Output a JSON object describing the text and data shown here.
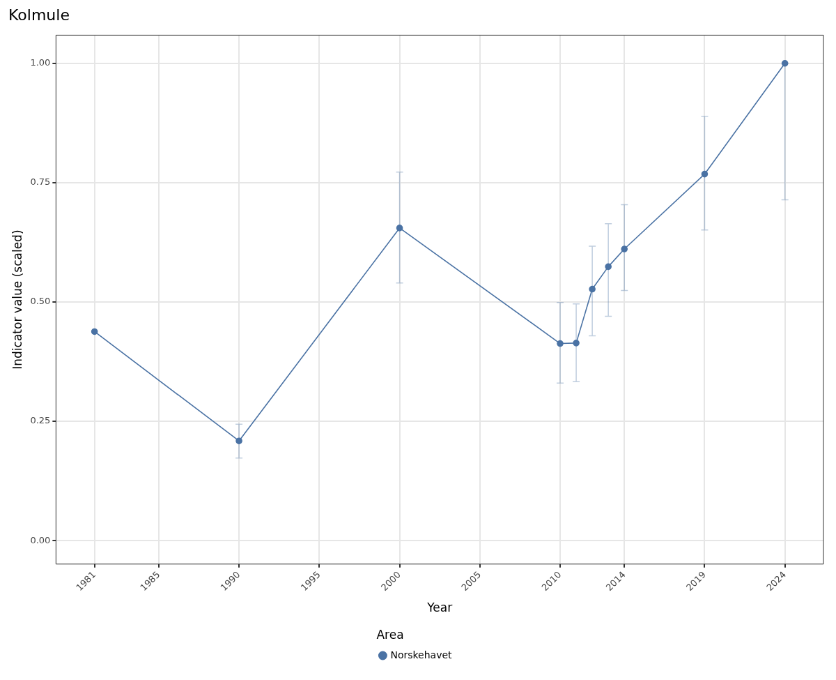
{
  "chart_data": {
    "type": "line",
    "title": "Kolmule",
    "xlabel": "Year",
    "ylabel": "Indicator value (scaled)",
    "legend_title": "Area",
    "x": [
      1981,
      1990,
      2000,
      2010,
      2011,
      2012,
      2013,
      2014,
      2019,
      2024
    ],
    "series": [
      {
        "name": "Norskehavet",
        "color": "#4a72a4",
        "values": [
          0.438,
          0.209,
          0.655,
          0.413,
          0.414,
          0.527,
          0.574,
          0.611,
          0.768,
          1.0
        ],
        "errors": [
          null,
          [
            0.173,
            0.244
          ],
          [
            0.54,
            0.772
          ],
          [
            0.33,
            0.499
          ],
          [
            0.333,
            0.496
          ],
          [
            0.429,
            0.617
          ],
          [
            0.47,
            0.664
          ],
          [
            0.524,
            0.704
          ],
          [
            0.651,
            0.889
          ],
          [
            0.714,
            1.0
          ]
        ]
      }
    ],
    "xlim": [
      1978.6,
      2026.4
    ],
    "xticks": [
      1981,
      1985,
      1990,
      1995,
      2000,
      2005,
      2010,
      2014,
      2019,
      2024
    ],
    "ylim": [
      -0.049,
      1.059
    ],
    "yticks": [
      {
        "value": 0,
        "label": "0.00"
      },
      {
        "value": 0.25,
        "label": "0.25"
      },
      {
        "value": 0.5,
        "label": "0.50"
      },
      {
        "value": 0.75,
        "label": "0.75"
      },
      {
        "value": 1,
        "label": "1.00"
      }
    ],
    "grid": true,
    "legend": "bottom",
    "marker": "circle",
    "line_style": "solid"
  }
}
